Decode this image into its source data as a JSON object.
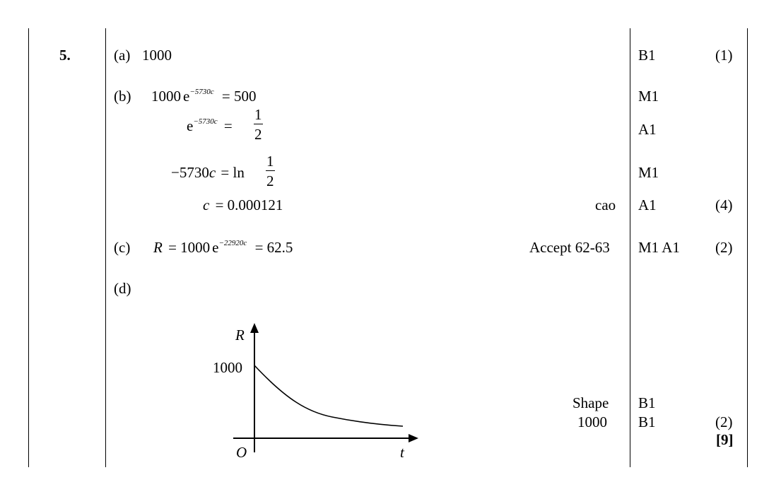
{
  "question": {
    "number": "5."
  },
  "parts": {
    "a": {
      "label": "(a)",
      "answer": "1000",
      "mark": "B1",
      "total": "(1)"
    },
    "b": {
      "label": "(b)",
      "line1": {
        "coef": "1000",
        "e": "e",
        "exp": "−5730c",
        "rhs": "= 500",
        "mark": "M1"
      },
      "line2": {
        "e": "e",
        "exp": "−5730c",
        "eq": "=",
        "num": "1",
        "den": "2",
        "mark": "A1"
      },
      "line3": {
        "lhs": "−5730",
        "var": "c",
        "eq": "= ln",
        "num": "1",
        "den": "2",
        "mark": "M1"
      },
      "line4": {
        "var": "c",
        "rhs": "= 0.000121",
        "note": "cao",
        "mark": "A1",
        "total": "(4)"
      }
    },
    "c": {
      "label": "(c)",
      "var": "R",
      "eq": "= 1000",
      "e": "e",
      "exp": "−22920c",
      "rhs": "= 62.5",
      "note": "Accept 62-63",
      "mark": "M1 A1",
      "total": "(2)"
    },
    "d": {
      "label": "(d)",
      "note1": "Shape",
      "mark1": "B1",
      "note2": "1000",
      "mark2": "B1",
      "total": "(2)"
    }
  },
  "grand_total": "[9]",
  "graph": {
    "y_axis_label": "R",
    "x_axis_label": "t",
    "origin_label": "O",
    "intercept_label": "1000",
    "curve": "exponential decay from R = 1000 at t = 0 towards the t-axis"
  }
}
